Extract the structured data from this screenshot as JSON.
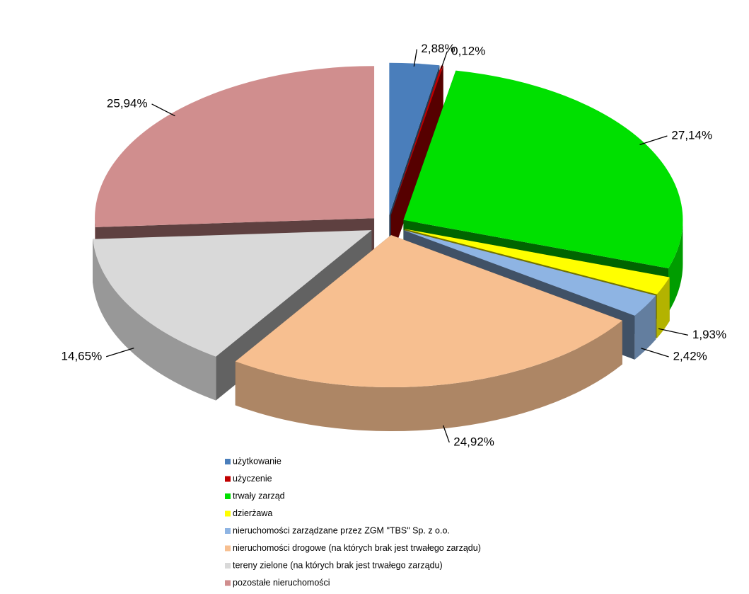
{
  "chart_data": {
    "type": "pie3d",
    "categories": [
      "użytkowanie",
      "użyczenie",
      "trwały zarząd",
      "dzierżawa",
      "nieruchomości zarządzane przez ZGM \"TBS\" Sp. z o.o.",
      "nieruchomości drogowe (na których brak jest trwałego zarządu)",
      "tereny zielone (na których brak jest trwałego zarządu)",
      "pozostałe nieruchomości"
    ],
    "values": [
      2.88,
      0.12,
      27.14,
      1.93,
      2.42,
      24.92,
      14.65,
      25.94
    ],
    "value_labels": [
      "2,88%",
      "0,12%",
      "27,14%",
      "1,93%",
      "2,42%",
      "24,92%",
      "14,65%",
      "25,94%"
    ],
    "colors": [
      "#4a7ebb",
      "#c00000",
      "#00e000",
      "#ffff00",
      "#8eb4e3",
      "#f7bf90",
      "#d9d9d9",
      "#d08e8e"
    ],
    "legend": "bottom"
  }
}
